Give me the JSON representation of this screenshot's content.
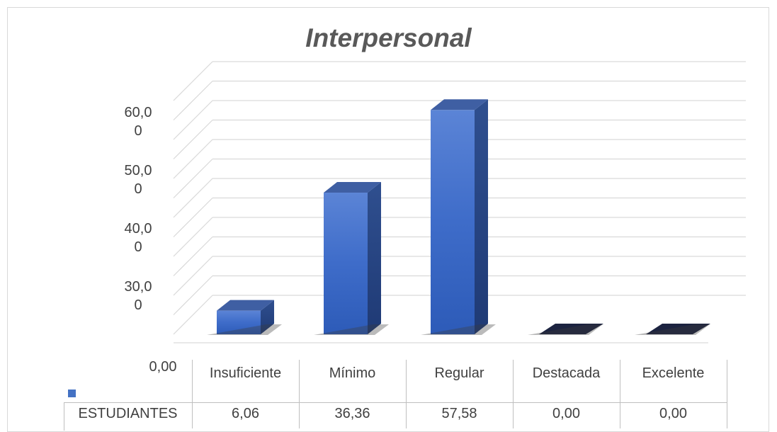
{
  "chart_data": {
    "type": "bar",
    "title": "Interpersonal",
    "categories": [
      "Insuficiente",
      "Mínimo",
      "Regular",
      "Destacada",
      "Excelente"
    ],
    "series": [
      {
        "name": "ESTUDIANTES",
        "values": [
          6.06,
          36.36,
          57.58,
          0.0,
          0.0
        ],
        "color": "#4472c4"
      }
    ],
    "value_labels": [
      "6,06",
      "36,36",
      "57,58",
      "0,00",
      "0,00"
    ],
    "y_tick_labels": [
      {
        "l1": "60,0",
        "l2": "0"
      },
      {
        "l1": "50,0",
        "l2": "0"
      },
      {
        "l1": "40,0",
        "l2": "0"
      },
      {
        "l1": "30,0",
        "l2": "0"
      },
      {
        "l1": "0,00",
        "l2": ""
      }
    ],
    "ylim": [
      0,
      60
    ],
    "grid": true,
    "style": "3d-column-with-data-table"
  }
}
